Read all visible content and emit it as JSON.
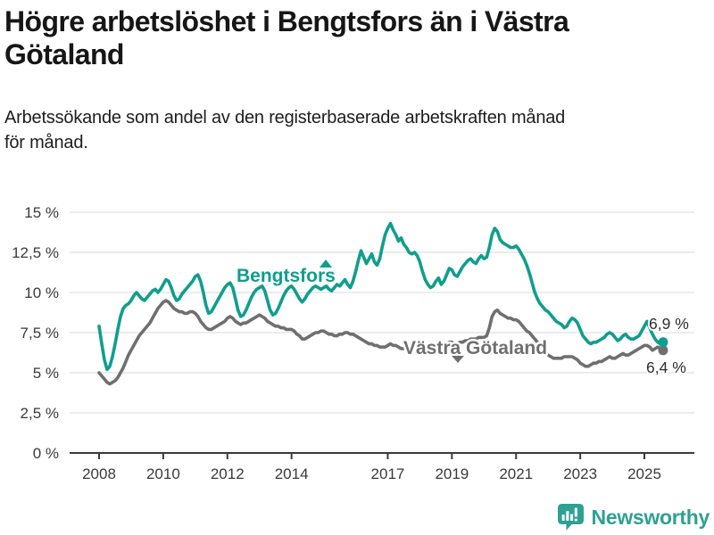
{
  "header": {
    "title": "Högre arbetslöshet i Bengtsfors än i Västra\nGötaland",
    "subtitle": "Arbetssökande som andel av den registerbaserade arbetskraften månad\nför månad."
  },
  "footer": {
    "brand": "Newsworthy"
  },
  "colors": {
    "bengtsfors": "#0f9e8e",
    "vastra_gotaland": "#6f6f6f",
    "axis": "#3a3a3a",
    "gridline": "#d9d9d9",
    "brand_teal": "#2da193"
  },
  "chart_data": {
    "type": "line",
    "unit": "%",
    "frequency": "monthly",
    "x_start": "2008-01",
    "x_end": "2025-08",
    "ylim": [
      0,
      15
    ],
    "grid": "horizontal",
    "legend_position": "inline-labels",
    "x_ticks": [
      "2008",
      "2010",
      "2012",
      "2014",
      "2017",
      "2019",
      "2021",
      "2023",
      "2025"
    ],
    "y_ticks": [
      {
        "value": 0,
        "label": "0 %"
      },
      {
        "value": 2.5,
        "label": "2,5 %"
      },
      {
        "value": 5,
        "label": "5 %"
      },
      {
        "value": 7.5,
        "label": "7,5 %"
      },
      {
        "value": 10,
        "label": "10 %"
      },
      {
        "value": 12.5,
        "label": "12,5 %"
      },
      {
        "value": 15,
        "label": "15 %"
      }
    ],
    "series": [
      {
        "id": "bengtsfors",
        "name": "Bengtsfors",
        "color": "#0f9e8e",
        "last_value_label": "6,9 %",
        "values": [
          7.9,
          6.8,
          5.8,
          5.2,
          5.4,
          6.0,
          6.8,
          7.7,
          8.5,
          9.0,
          9.2,
          9.3,
          9.5,
          9.8,
          10.0,
          9.8,
          9.6,
          9.5,
          9.7,
          9.9,
          10.1,
          10.2,
          10.0,
          10.2,
          10.5,
          10.8,
          10.7,
          10.3,
          9.8,
          9.5,
          9.6,
          9.9,
          10.1,
          10.3,
          10.5,
          10.7,
          11.0,
          11.1,
          10.7,
          10.0,
          9.2,
          8.7,
          8.8,
          9.1,
          9.4,
          9.7,
          10.0,
          10.3,
          10.5,
          10.6,
          10.3,
          9.6,
          8.9,
          8.5,
          8.6,
          8.9,
          9.3,
          9.7,
          10.0,
          10.2,
          10.3,
          10.4,
          10.1,
          9.5,
          8.9,
          8.6,
          8.7,
          9.0,
          9.4,
          9.8,
          10.1,
          10.3,
          10.4,
          10.2,
          9.9,
          9.6,
          9.4,
          9.6,
          9.9,
          10.1,
          10.3,
          10.4,
          10.3,
          10.2,
          10.3,
          10.4,
          10.2,
          10.1,
          10.3,
          10.5,
          10.4,
          10.6,
          10.8,
          10.5,
          10.3,
          10.7,
          11.3,
          12.0,
          12.6,
          12.2,
          11.8,
          12.1,
          12.4,
          11.9,
          11.7,
          12.1,
          12.9,
          13.6,
          14.0,
          14.3,
          13.9,
          13.6,
          13.2,
          13.4,
          13.0,
          12.8,
          12.5,
          12.4,
          12.5,
          12.3,
          11.9,
          11.3,
          10.8,
          10.5,
          10.3,
          10.4,
          10.7,
          10.9,
          10.5,
          10.7,
          11.1,
          11.5,
          11.4,
          11.1,
          11.0,
          11.3,
          11.6,
          11.8,
          12.0,
          12.1,
          11.9,
          11.8,
          12.1,
          12.3,
          12.1,
          12.2,
          12.8,
          13.6,
          14.0,
          13.8,
          13.3,
          13.1,
          13.0,
          12.9,
          12.8,
          12.8,
          12.9,
          12.7,
          12.4,
          12.1,
          11.7,
          11.2,
          10.6,
          10.0,
          9.6,
          9.3,
          9.1,
          8.9,
          8.8,
          8.6,
          8.4,
          8.2,
          8.1,
          8.0,
          7.8,
          7.9,
          8.2,
          8.4,
          8.3,
          8.1,
          7.7,
          7.3,
          7.1,
          6.9,
          6.8,
          6.9,
          6.9,
          7.0,
          7.1,
          7.2,
          7.4,
          7.5,
          7.4,
          7.2,
          7.0,
          7.1,
          7.3,
          7.4,
          7.2,
          7.1,
          7.1,
          7.2,
          7.3,
          7.6,
          7.9,
          8.2,
          7.8,
          7.4,
          7.1,
          6.9,
          6.8,
          6.9
        ]
      },
      {
        "id": "vastra-gotaland",
        "name": "Västra Götaland",
        "color": "#6f6f6f",
        "last_value_label": "6,4 %",
        "values": [
          5.0,
          4.8,
          4.6,
          4.4,
          4.3,
          4.4,
          4.5,
          4.7,
          5.0,
          5.3,
          5.7,
          6.1,
          6.4,
          6.7,
          7.0,
          7.3,
          7.5,
          7.7,
          7.9,
          8.1,
          8.4,
          8.7,
          9.0,
          9.2,
          9.4,
          9.5,
          9.4,
          9.2,
          9.0,
          8.9,
          8.8,
          8.8,
          8.7,
          8.7,
          8.8,
          8.8,
          8.7,
          8.5,
          8.2,
          8.0,
          7.8,
          7.7,
          7.7,
          7.8,
          7.9,
          8.0,
          8.1,
          8.2,
          8.4,
          8.5,
          8.4,
          8.2,
          8.1,
          8.0,
          8.1,
          8.1,
          8.2,
          8.3,
          8.4,
          8.5,
          8.6,
          8.5,
          8.4,
          8.2,
          8.1,
          8.0,
          7.9,
          7.9,
          7.8,
          7.8,
          7.7,
          7.7,
          7.7,
          7.6,
          7.4,
          7.3,
          7.1,
          7.1,
          7.2,
          7.3,
          7.4,
          7.5,
          7.5,
          7.6,
          7.6,
          7.5,
          7.4,
          7.4,
          7.3,
          7.3,
          7.4,
          7.4,
          7.5,
          7.5,
          7.4,
          7.4,
          7.3,
          7.2,
          7.1,
          7.0,
          6.9,
          6.8,
          6.8,
          6.7,
          6.7,
          6.6,
          6.6,
          6.6,
          6.7,
          6.8,
          6.7,
          6.7,
          6.6,
          6.5,
          6.5,
          6.6,
          6.6,
          6.7,
          6.6,
          6.5,
          6.5,
          6.4,
          6.4,
          6.5,
          6.5,
          6.6,
          6.6,
          6.7,
          6.7,
          6.8,
          6.8,
          6.9,
          6.9,
          6.8,
          6.8,
          6.9,
          6.9,
          7.0,
          7.0,
          7.1,
          7.1,
          7.1,
          7.2,
          7.2,
          7.2,
          7.3,
          7.8,
          8.5,
          8.8,
          8.9,
          8.7,
          8.6,
          8.5,
          8.4,
          8.4,
          8.3,
          8.3,
          8.2,
          8.0,
          7.8,
          7.6,
          7.5,
          7.3,
          7.1,
          6.9,
          6.7,
          6.4,
          6.2,
          6.1,
          6.0,
          5.9,
          5.9,
          5.9,
          5.9,
          6.0,
          6.0,
          6.0,
          6.0,
          5.9,
          5.8,
          5.6,
          5.5,
          5.4,
          5.4,
          5.5,
          5.6,
          5.6,
          5.7,
          5.7,
          5.8,
          5.9,
          6.0,
          5.9,
          5.9,
          6.0,
          6.1,
          6.2,
          6.1,
          6.1,
          6.2,
          6.3,
          6.4,
          6.5,
          6.6,
          6.7,
          6.7,
          6.6,
          6.4,
          6.5,
          6.6,
          6.5,
          6.4
        ]
      }
    ]
  }
}
